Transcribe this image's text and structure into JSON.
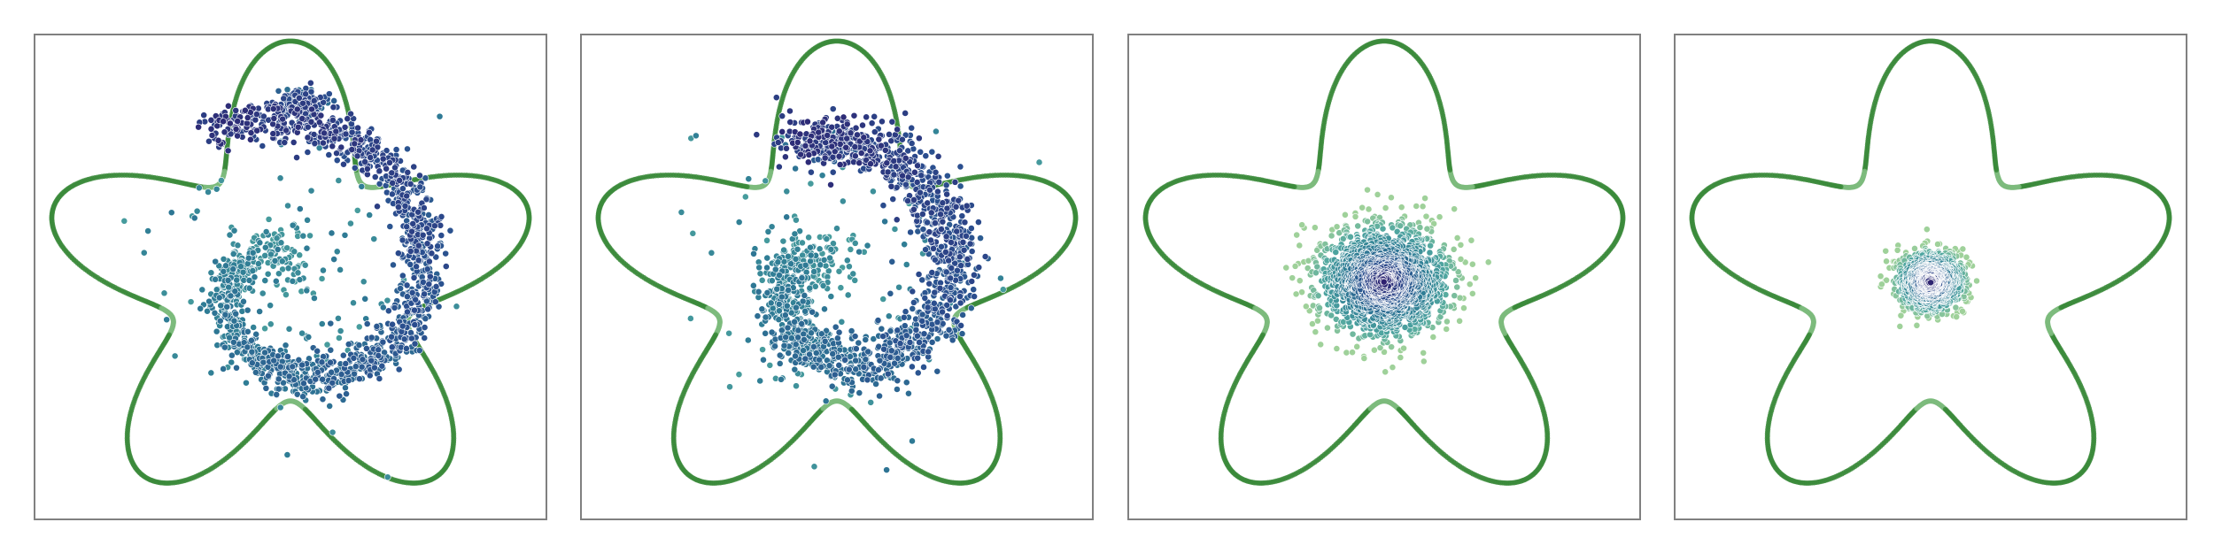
{
  "chart_data": [
    {
      "type": "scatter",
      "title": "",
      "xlabel": "",
      "ylabel": "",
      "xlim": [
        -1.3,
        1.3
      ],
      "ylim": [
        -1.25,
        1.3
      ],
      "grid": false,
      "legend": "none",
      "boundary": {
        "shape": "star",
        "lobes": 5,
        "mean_radius": 0.95,
        "lobe_amplitude": 0.32,
        "color": "#3a8a3a"
      },
      "series": [
        {
          "kind": "spiral",
          "turn_start": 0.5,
          "turn_end": 7.4,
          "radius_start": 0.1,
          "radius_end": 0.9,
          "blob_center": [
            0.05,
            0.95
          ],
          "noise": 0.055,
          "n_points": 1800,
          "colormap": [
            "#2e1f6e",
            "#2b4f8f",
            "#2f7d95",
            "#4fa6a0",
            "#9fd19a"
          ]
        }
      ]
    },
    {
      "type": "scatter",
      "title": "",
      "xlabel": "",
      "ylabel": "",
      "xlim": [
        -1.3,
        1.3
      ],
      "ylim": [
        -1.25,
        1.3
      ],
      "grid": false,
      "legend": "none",
      "boundary": {
        "shape": "star",
        "lobes": 5,
        "mean_radius": 0.95,
        "lobe_amplitude": 0.32,
        "color": "#3a8a3a"
      },
      "series": [
        {
          "kind": "spiral",
          "turn_start": 0.5,
          "turn_end": 7.3,
          "radius_start": 0.08,
          "radius_end": 0.78,
          "blob_center": [
            -0.05,
            0.72
          ],
          "noise": 0.07,
          "n_points": 1800,
          "colormap": [
            "#2e1f6e",
            "#2b4f8f",
            "#2f7d95",
            "#4fa6a0",
            "#9fd19a"
          ]
        }
      ]
    },
    {
      "type": "scatter",
      "title": "",
      "xlabel": "",
      "ylabel": "",
      "xlim": [
        -1.3,
        1.3
      ],
      "ylim": [
        -1.25,
        1.3
      ],
      "grid": false,
      "legend": "none",
      "boundary": {
        "shape": "star",
        "lobes": 5,
        "mean_radius": 0.95,
        "lobe_amplitude": 0.32,
        "color": "#3a8a3a"
      },
      "series": [
        {
          "kind": "gaussian",
          "center": [
            0.0,
            0.0
          ],
          "std": [
            0.16,
            0.14
          ],
          "n_points": 1800,
          "colormap": [
            "#2e1f6e",
            "#2b4f8f",
            "#2f7d95",
            "#4fa6a0",
            "#9fd19a"
          ]
        }
      ]
    },
    {
      "type": "scatter",
      "title": "",
      "xlabel": "",
      "ylabel": "",
      "xlim": [
        -1.3,
        1.3
      ],
      "ylim": [
        -1.25,
        1.3
      ],
      "grid": false,
      "legend": "none",
      "boundary": {
        "shape": "star",
        "lobes": 5,
        "mean_radius": 0.95,
        "lobe_amplitude": 0.32,
        "color": "#3a8a3a"
      },
      "series": [
        {
          "kind": "gaussian",
          "center": [
            0.0,
            0.0
          ],
          "std": [
            0.08,
            0.075
          ],
          "n_points": 1500,
          "colormap": [
            "#2e1f6e",
            "#2b4f8f",
            "#2f7d95",
            "#4fa6a0",
            "#9fd19a"
          ]
        }
      ]
    }
  ]
}
